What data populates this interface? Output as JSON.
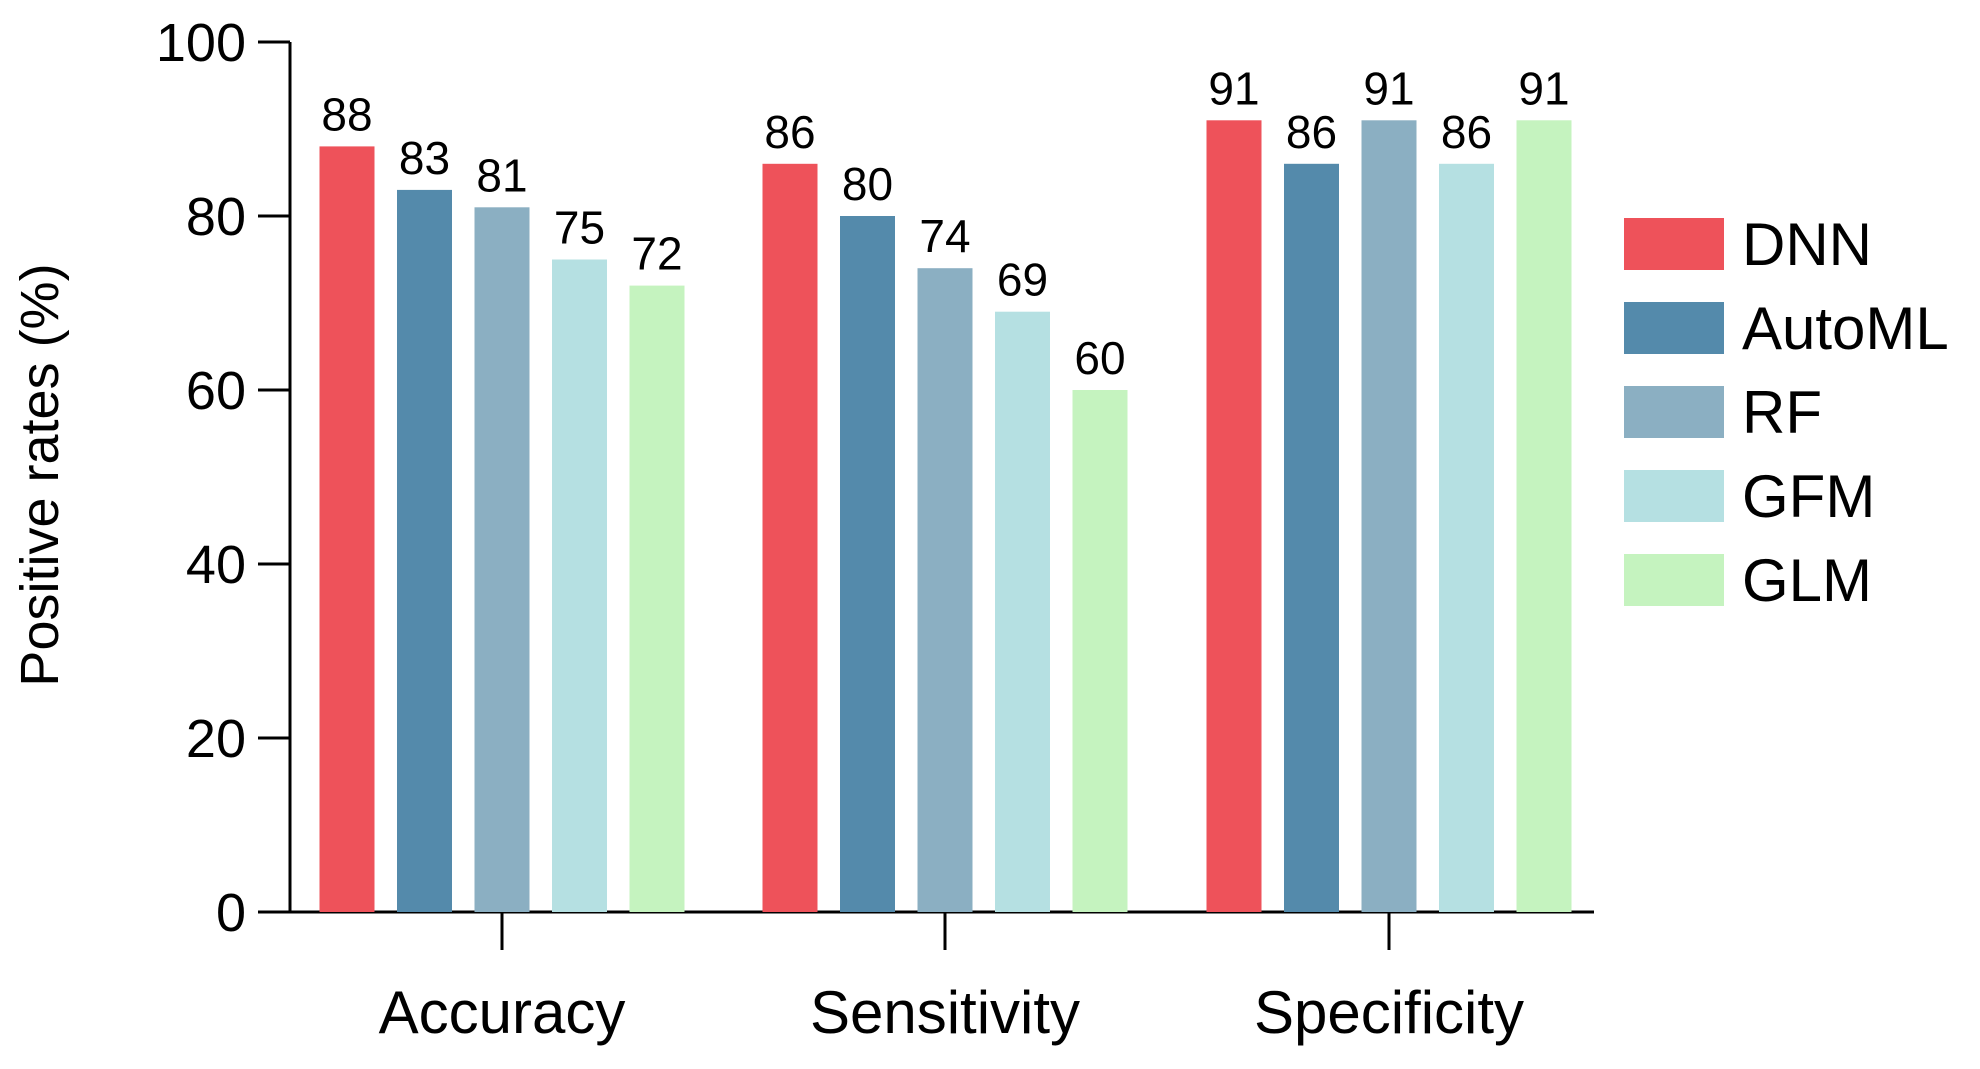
{
  "chart_data": {
    "type": "bar",
    "title": "",
    "xlabel": "",
    "ylabel": "Positive rates (%)",
    "ylim": [
      0,
      100
    ],
    "yticks": [
      0,
      20,
      40,
      60,
      80,
      100
    ],
    "categories": [
      "Accuracy",
      "Sensitivity",
      "Specificity"
    ],
    "legend_position": "right",
    "grid": false,
    "series": [
      {
        "name": "DNN",
        "color": "#ee525a",
        "values": [
          88,
          86,
          91
        ]
      },
      {
        "name": "AutoML",
        "color": "#548aab",
        "values": [
          83,
          80,
          86
        ]
      },
      {
        "name": "RF",
        "color": "#8bafc2",
        "values": [
          81,
          74,
          91
        ]
      },
      {
        "name": "GFM",
        "color": "#b5e0e2",
        "values": [
          75,
          69,
          86
        ]
      },
      {
        "name": "GLM",
        "color": "#c5f3bf",
        "values": [
          72,
          60,
          91
        ]
      }
    ]
  }
}
